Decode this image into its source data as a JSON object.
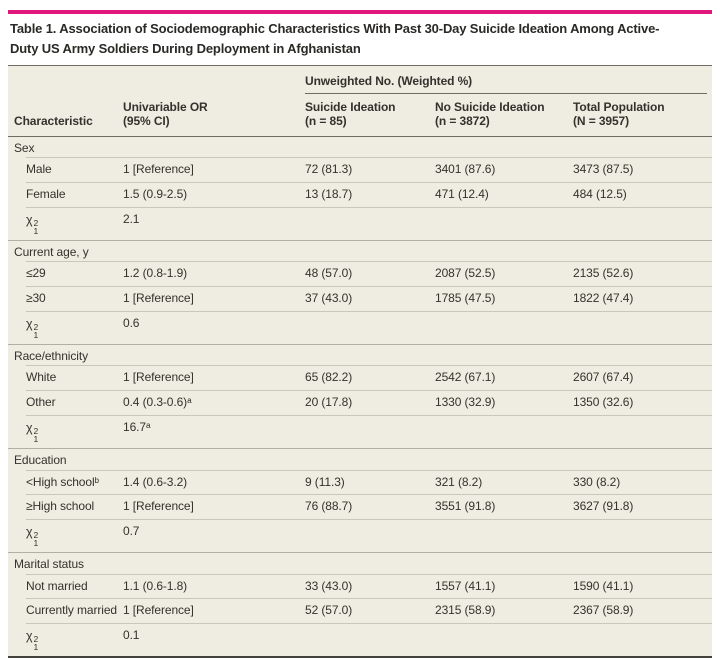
{
  "colors": {
    "accent_bar": "#e0187e",
    "table_background": "#efede2",
    "header_rule": "#6e6c62",
    "row_separator": "#c9c6ba",
    "section_separator": "#b2b0a4",
    "bottom_border": "#44423c",
    "text": "#33322c"
  },
  "title": "Table 1. Association of Sociodemographic Characteristics With Past 30-Day Suicide Ideation Among Active-Duty US Army Soldiers During Deployment in Afghanistan",
  "table": {
    "span_header": "Unweighted No. (Weighted %)",
    "columns": [
      "Characteristic",
      "Univariable OR\n(95% CI)",
      "Suicide Ideation\n(n = 85)",
      "No Suicide Ideation\n(n = 3872)",
      "Total Population\n(N = 3957)"
    ],
    "chi": {
      "base": "χ",
      "sup": "2",
      "sub": "1"
    },
    "sections": [
      {
        "label": "Sex",
        "rows": [
          {
            "label": "Male",
            "cells": [
              "1 [Reference]",
              "72 (81.3)",
              "3401 (87.6)",
              "3473 (87.5)"
            ]
          },
          {
            "label": "Female",
            "cells": [
              "1.5 (0.9-2.5)",
              "13 (18.7)",
              "471 (12.4)",
              "484 (12.5)"
            ]
          },
          {
            "chi": true,
            "cells": [
              "2.1",
              "",
              "",
              ""
            ]
          }
        ]
      },
      {
        "label": "Current age, y",
        "rows": [
          {
            "label": "≤29",
            "cells": [
              "1.2 (0.8-1.9)",
              "48 (57.0)",
              "2087 (52.5)",
              "2135 (52.6)"
            ]
          },
          {
            "label": "≥30",
            "cells": [
              "1 [Reference]",
              "37 (43.0)",
              "1785 (47.5)",
              "1822 (47.4)"
            ]
          },
          {
            "chi": true,
            "cells": [
              "0.6",
              "",
              "",
              ""
            ]
          }
        ]
      },
      {
        "label": "Race/ethnicity",
        "rows": [
          {
            "label": "White",
            "cells": [
              "1 [Reference]",
              "65 (82.2)",
              "2542 (67.1)",
              "2607 (67.4)"
            ]
          },
          {
            "label": "Other",
            "cells": [
              "0.4 (0.3-0.6)ᵃ",
              "20 (17.8)",
              "1330 (32.9)",
              "1350 (32.6)"
            ]
          },
          {
            "chi": true,
            "cells": [
              "16.7ᵃ",
              "",
              "",
              ""
            ]
          }
        ]
      },
      {
        "label": "Education",
        "rows": [
          {
            "label": "<High schoolᵇ",
            "cells": [
              "1.4 (0.6-3.2)",
              "9 (11.3)",
              "321 (8.2)",
              "330 (8.2)"
            ]
          },
          {
            "label": "≥High school",
            "cells": [
              "1 [Reference]",
              "76 (88.7)",
              "3551 (91.8)",
              "3627 (91.8)"
            ]
          },
          {
            "chi": true,
            "cells": [
              "0.7",
              "",
              "",
              ""
            ]
          }
        ]
      },
      {
        "label": "Marital status",
        "rows": [
          {
            "label": "Not married",
            "cells": [
              "1.1 (0.6-1.8)",
              "33 (43.0)",
              "1557 (41.1)",
              "1590 (41.1)"
            ]
          },
          {
            "label": "Currently married",
            "cells": [
              "1 [Reference]",
              "52 (57.0)",
              "2315 (58.9)",
              "2367 (58.9)"
            ]
          },
          {
            "chi": true,
            "cells": [
              "0.1",
              "",
              "",
              ""
            ]
          }
        ]
      }
    ]
  }
}
